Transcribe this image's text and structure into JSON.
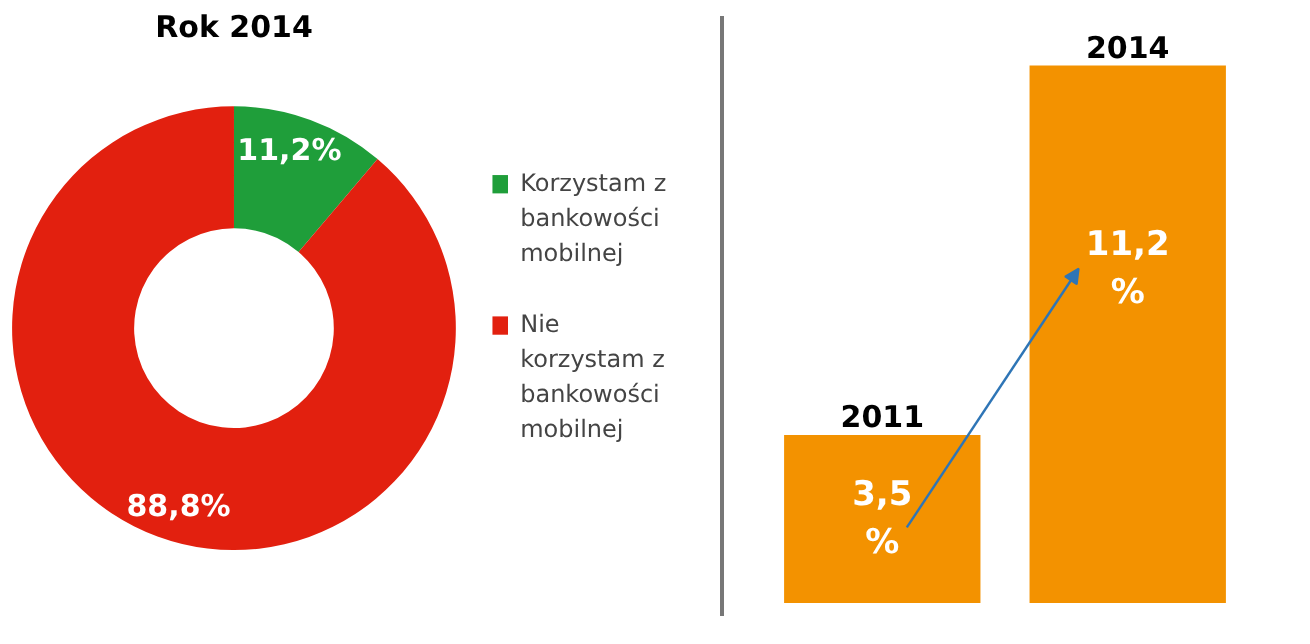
{
  "chart_data": [
    {
      "type": "donut",
      "title": "Rok 2014",
      "categories": [
        "Korzystam z bankowości mobilnej",
        "Nie korzystam z bankowości mobilnej"
      ],
      "values": [
        11.2,
        88.8
      ],
      "colors": [
        "#1f9e3a",
        "#e2200f"
      ],
      "value_labels": [
        "11,2%",
        "88,8%"
      ],
      "legend": "right"
    },
    {
      "type": "bar",
      "categories": [
        "2011",
        "2014"
      ],
      "values": [
        3.5,
        11.2
      ],
      "color": "#f39200",
      "value_labels": [
        "3,5\n%",
        "11,2\n%"
      ]
    }
  ]
}
